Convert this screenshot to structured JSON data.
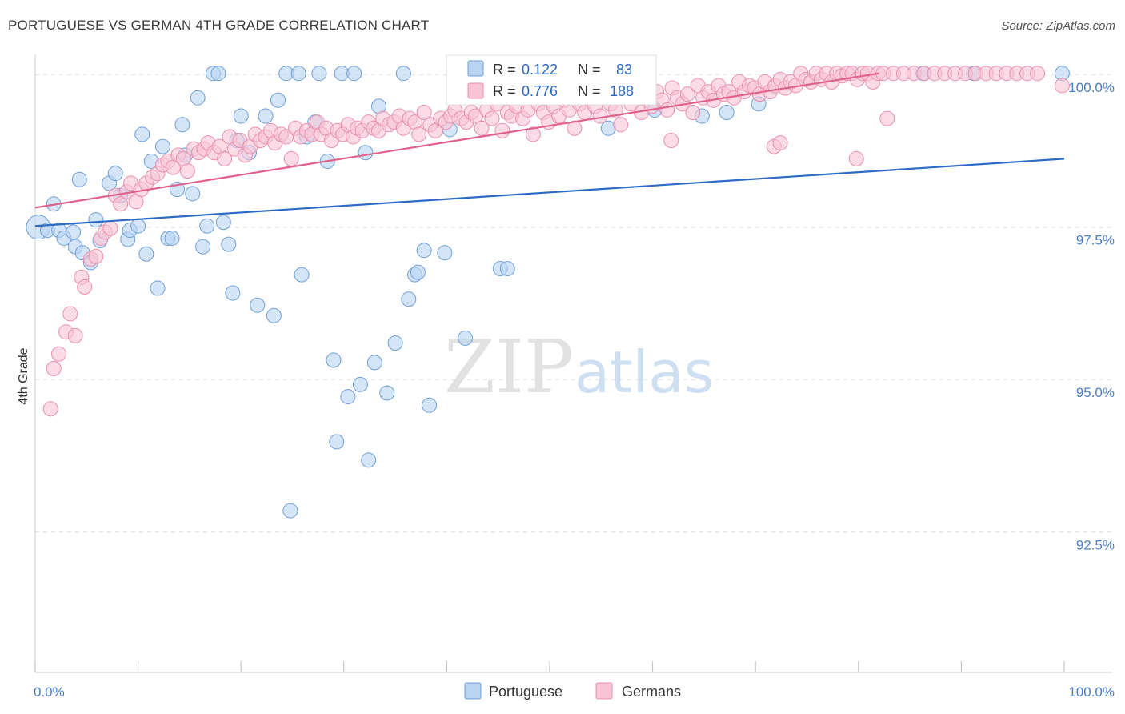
{
  "title": "PORTUGUESE VS GERMAN 4TH GRADE CORRELATION CHART",
  "source": "Source: ZipAtlas.com",
  "watermark": {
    "zip": "ZIP",
    "atlas": "atlas"
  },
  "colors": {
    "blue_fill": "#b9d3f3",
    "blue_stroke": "#6f9fd8",
    "blue_line": "#2d6cc4",
    "pink_fill": "#f8c4d5",
    "pink_stroke": "#ea8fad",
    "pink_line": "#e0628b",
    "tick_text": "#4a7fc8",
    "grid": "#dddddd"
  },
  "legend": {
    "r_label": "R =",
    "n_label": "N =",
    "rows": [
      {
        "r": "0.122",
        "n": "83",
        "series": "blue"
      },
      {
        "r": "0.776",
        "n": "188",
        "series": "pink"
      }
    ]
  },
  "chart_data": {
    "type": "scatter",
    "title": "PORTUGUESE VS GERMAN 4TH GRADE CORRELATION CHART",
    "xlabel": "",
    "ylabel": "4th Grade",
    "xlim": [
      0,
      100
    ],
    "ylim": [
      90.2,
      100.2
    ],
    "x_tick_labels": [
      "0.0%",
      "100.0%"
    ],
    "y_ticks": [
      92.5,
      95.0,
      97.5,
      100.0
    ],
    "y_tick_labels": [
      "92.5%",
      "95.0%",
      "97.5%",
      "100.0%"
    ],
    "grid": "horizontal dashed",
    "legend_position": "top-center and bottom",
    "series": [
      {
        "name": "Portuguese",
        "color": "blue",
        "trend": {
          "x": [
            0,
            100
          ],
          "y": [
            97.52,
            98.62
          ]
        },
        "points": [
          [
            0.3,
            97.5
          ],
          [
            1.8,
            97.88
          ],
          [
            1.2,
            97.45
          ],
          [
            2.3,
            97.45
          ],
          [
            2.8,
            97.32
          ],
          [
            3.7,
            97.42
          ],
          [
            3.9,
            97.18
          ],
          [
            4.3,
            98.28
          ],
          [
            4.6,
            97.08
          ],
          [
            5.4,
            96.92
          ],
          [
            5.9,
            97.62
          ],
          [
            6.3,
            97.28
          ],
          [
            7.2,
            98.22
          ],
          [
            7.8,
            98.38
          ],
          [
            8.3,
            98.02
          ],
          [
            9.0,
            97.3
          ],
          [
            9.2,
            97.45
          ],
          [
            10.0,
            97.52
          ],
          [
            10.4,
            99.02
          ],
          [
            10.8,
            97.06
          ],
          [
            11.3,
            98.58
          ],
          [
            11.9,
            96.5
          ],
          [
            12.4,
            98.82
          ],
          [
            12.9,
            97.32
          ],
          [
            13.3,
            97.32
          ],
          [
            13.8,
            98.12
          ],
          [
            14.3,
            99.18
          ],
          [
            14.6,
            98.68
          ],
          [
            15.3,
            98.05
          ],
          [
            15.8,
            99.62
          ],
          [
            16.3,
            97.18
          ],
          [
            16.7,
            97.52
          ],
          [
            17.3,
            100.02
          ],
          [
            17.8,
            100.02
          ],
          [
            18.3,
            97.58
          ],
          [
            18.8,
            97.22
          ],
          [
            19.2,
            96.42
          ],
          [
            19.6,
            98.92
          ],
          [
            20.0,
            99.32
          ],
          [
            20.8,
            98.72
          ],
          [
            21.6,
            96.22
          ],
          [
            22.4,
            99.32
          ],
          [
            23.2,
            96.05
          ],
          [
            23.6,
            99.58
          ],
          [
            24.4,
            100.02
          ],
          [
            24.8,
            92.85
          ],
          [
            25.6,
            100.02
          ],
          [
            25.9,
            96.72
          ],
          [
            26.4,
            98.98
          ],
          [
            27.2,
            99.22
          ],
          [
            27.6,
            100.02
          ],
          [
            28.4,
            98.58
          ],
          [
            29.0,
            95.32
          ],
          [
            29.3,
            93.98
          ],
          [
            29.8,
            100.02
          ],
          [
            30.4,
            94.72
          ],
          [
            31.0,
            100.02
          ],
          [
            31.6,
            94.92
          ],
          [
            32.1,
            98.72
          ],
          [
            32.4,
            93.68
          ],
          [
            33.0,
            95.28
          ],
          [
            33.4,
            99.48
          ],
          [
            34.2,
            94.78
          ],
          [
            35.0,
            95.6
          ],
          [
            35.8,
            100.02
          ],
          [
            36.3,
            96.32
          ],
          [
            36.9,
            96.72
          ],
          [
            37.2,
            96.76
          ],
          [
            37.8,
            97.12
          ],
          [
            38.3,
            94.58
          ],
          [
            39.8,
            97.08
          ],
          [
            40.3,
            99.1
          ],
          [
            41.8,
            95.68
          ],
          [
            45.2,
            96.82
          ],
          [
            45.9,
            96.82
          ],
          [
            48.4,
            100.02
          ],
          [
            55.7,
            99.12
          ],
          [
            60.2,
            99.42
          ],
          [
            64.8,
            99.32
          ],
          [
            67.2,
            99.38
          ],
          [
            70.3,
            99.52
          ],
          [
            86.3,
            100.02
          ],
          [
            91.2,
            100.02
          ],
          [
            99.8,
            100.02
          ]
        ]
      },
      {
        "name": "Germans",
        "color": "pink",
        "trend": {
          "x": [
            0,
            82
          ],
          "y": [
            97.82,
            100.02
          ]
        },
        "points": [
          [
            1.5,
            94.52
          ],
          [
            1.8,
            95.18
          ],
          [
            2.3,
            95.42
          ],
          [
            3.0,
            95.78
          ],
          [
            3.4,
            96.08
          ],
          [
            3.9,
            95.72
          ],
          [
            4.5,
            96.68
          ],
          [
            4.8,
            96.52
          ],
          [
            5.4,
            96.98
          ],
          [
            5.9,
            97.02
          ],
          [
            6.4,
            97.32
          ],
          [
            6.8,
            97.42
          ],
          [
            7.3,
            97.48
          ],
          [
            7.8,
            98.02
          ],
          [
            8.3,
            97.88
          ],
          [
            8.9,
            98.08
          ],
          [
            9.3,
            98.22
          ],
          [
            9.8,
            97.92
          ],
          [
            10.3,
            98.12
          ],
          [
            10.8,
            98.22
          ],
          [
            11.4,
            98.32
          ],
          [
            11.9,
            98.38
          ],
          [
            12.4,
            98.52
          ],
          [
            12.9,
            98.58
          ],
          [
            13.4,
            98.48
          ],
          [
            13.9,
            98.68
          ],
          [
            14.4,
            98.62
          ],
          [
            14.8,
            98.42
          ],
          [
            15.4,
            98.78
          ],
          [
            15.9,
            98.72
          ],
          [
            16.4,
            98.78
          ],
          [
            16.8,
            98.88
          ],
          [
            17.4,
            98.72
          ],
          [
            17.9,
            98.82
          ],
          [
            18.4,
            98.62
          ],
          [
            18.9,
            98.98
          ],
          [
            19.4,
            98.78
          ],
          [
            19.9,
            98.92
          ],
          [
            20.4,
            98.68
          ],
          [
            20.9,
            98.82
          ],
          [
            21.4,
            99.02
          ],
          [
            21.9,
            98.92
          ],
          [
            22.4,
            98.98
          ],
          [
            22.9,
            99.08
          ],
          [
            23.3,
            98.88
          ],
          [
            23.9,
            99.02
          ],
          [
            24.4,
            98.98
          ],
          [
            24.9,
            98.62
          ],
          [
            25.3,
            99.12
          ],
          [
            25.8,
            98.98
          ],
          [
            26.4,
            99.08
          ],
          [
            26.9,
            99.02
          ],
          [
            27.4,
            99.22
          ],
          [
            27.8,
            99.02
          ],
          [
            28.3,
            99.12
          ],
          [
            28.8,
            98.92
          ],
          [
            29.4,
            99.08
          ],
          [
            29.9,
            99.02
          ],
          [
            30.4,
            99.18
          ],
          [
            30.9,
            98.98
          ],
          [
            31.3,
            99.12
          ],
          [
            31.8,
            99.08
          ],
          [
            32.4,
            99.22
          ],
          [
            32.9,
            99.12
          ],
          [
            33.4,
            99.08
          ],
          [
            33.8,
            99.28
          ],
          [
            34.4,
            99.18
          ],
          [
            34.9,
            99.22
          ],
          [
            35.4,
            99.32
          ],
          [
            35.8,
            99.12
          ],
          [
            36.4,
            99.28
          ],
          [
            36.9,
            99.22
          ],
          [
            37.3,
            99.02
          ],
          [
            37.8,
            99.38
          ],
          [
            38.4,
            99.18
          ],
          [
            38.9,
            99.08
          ],
          [
            39.4,
            99.28
          ],
          [
            39.9,
            99.22
          ],
          [
            40.4,
            99.32
          ],
          [
            40.8,
            99.42
          ],
          [
            41.4,
            99.28
          ],
          [
            41.9,
            99.22
          ],
          [
            42.4,
            99.38
          ],
          [
            42.8,
            99.32
          ],
          [
            43.4,
            99.12
          ],
          [
            43.9,
            99.42
          ],
          [
            44.4,
            99.28
          ],
          [
            44.9,
            99.52
          ],
          [
            45.4,
            99.08
          ],
          [
            45.9,
            99.38
          ],
          [
            46.3,
            99.32
          ],
          [
            46.8,
            99.48
          ],
          [
            47.4,
            99.28
          ],
          [
            47.9,
            99.42
          ],
          [
            48.4,
            99.02
          ],
          [
            48.9,
            99.52
          ],
          [
            49.4,
            99.38
          ],
          [
            49.9,
            99.22
          ],
          [
            50.4,
            99.48
          ],
          [
            50.9,
            99.32
          ],
          [
            51.4,
            99.58
          ],
          [
            51.9,
            99.42
          ],
          [
            52.4,
            99.12
          ],
          [
            52.9,
            99.52
          ],
          [
            53.4,
            99.38
          ],
          [
            53.9,
            99.62
          ],
          [
            54.4,
            99.48
          ],
          [
            54.9,
            99.32
          ],
          [
            55.4,
            99.68
          ],
          [
            55.9,
            99.52
          ],
          [
            56.4,
            99.42
          ],
          [
            56.9,
            99.18
          ],
          [
            57.4,
            99.62
          ],
          [
            57.9,
            99.52
          ],
          [
            58.4,
            99.72
          ],
          [
            58.9,
            99.38
          ],
          [
            59.4,
            99.62
          ],
          [
            59.9,
            99.48
          ],
          [
            60.4,
            99.72
          ],
          [
            60.9,
            99.58
          ],
          [
            61.4,
            99.42
          ],
          [
            61.9,
            99.78
          ],
          [
            62.4,
            99.62
          ],
          [
            62.9,
            99.52
          ],
          [
            63.4,
            99.68
          ],
          [
            63.9,
            99.38
          ],
          [
            64.4,
            99.82
          ],
          [
            64.9,
            99.62
          ],
          [
            65.4,
            99.72
          ],
          [
            65.9,
            99.58
          ],
          [
            66.4,
            99.82
          ],
          [
            66.9,
            99.68
          ],
          [
            67.4,
            99.72
          ],
          [
            67.9,
            99.62
          ],
          [
            68.4,
            99.88
          ],
          [
            68.9,
            99.72
          ],
          [
            69.4,
            99.82
          ],
          [
            69.9,
            99.78
          ],
          [
            70.4,
            99.68
          ],
          [
            70.9,
            99.88
          ],
          [
            71.4,
            99.72
          ],
          [
            71.9,
            99.82
          ],
          [
            72.4,
            99.92
          ],
          [
            72.9,
            99.78
          ],
          [
            73.4,
            99.88
          ],
          [
            73.9,
            99.82
          ],
          [
            74.4,
            100.02
          ],
          [
            74.9,
            99.92
          ],
          [
            75.4,
            99.88
          ],
          [
            75.9,
            100.02
          ],
          [
            76.4,
            99.92
          ],
          [
            76.9,
            100.02
          ],
          [
            77.4,
            99.88
          ],
          [
            77.9,
            100.02
          ],
          [
            78.4,
            99.98
          ],
          [
            78.9,
            100.02
          ],
          [
            79.4,
            100.02
          ],
          [
            79.9,
            99.92
          ],
          [
            80.4,
            100.02
          ],
          [
            80.9,
            100.02
          ],
          [
            81.4,
            99.88
          ],
          [
            81.9,
            100.02
          ],
          [
            82.4,
            100.02
          ],
          [
            83.4,
            100.02
          ],
          [
            84.4,
            100.02
          ],
          [
            85.4,
            100.02
          ],
          [
            86.4,
            100.02
          ],
          [
            87.4,
            100.02
          ],
          [
            88.4,
            100.02
          ],
          [
            89.4,
            100.02
          ],
          [
            90.4,
            100.02
          ],
          [
            91.4,
            100.02
          ],
          [
            92.4,
            100.02
          ],
          [
            93.4,
            100.02
          ],
          [
            94.4,
            100.02
          ],
          [
            95.4,
            100.02
          ],
          [
            96.4,
            100.02
          ],
          [
            97.4,
            100.02
          ],
          [
            99.8,
            99.82
          ],
          [
            61.8,
            98.92
          ],
          [
            71.8,
            98.82
          ],
          [
            82.8,
            99.28
          ],
          [
            79.8,
            98.62
          ],
          [
            72.4,
            98.88
          ]
        ]
      }
    ]
  }
}
